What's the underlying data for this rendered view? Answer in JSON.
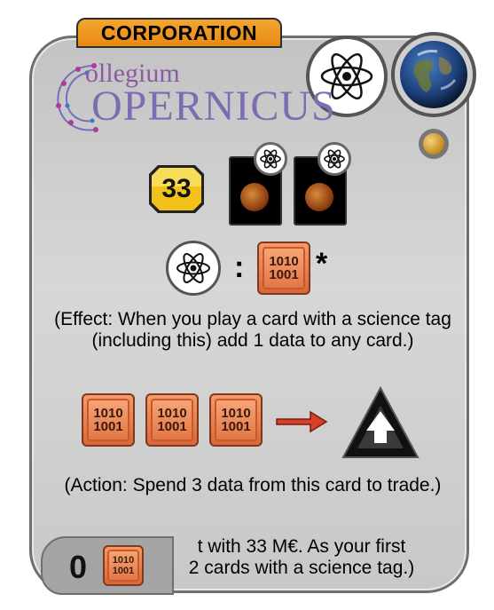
{
  "card_type": "CORPORATION",
  "logo": {
    "line1": "ollegium",
    "line2": "OPERNICUS"
  },
  "tags": [
    "science-icon",
    "earth-icon"
  ],
  "cost": "33",
  "requirement_cards": [
    "card-science",
    "card-science"
  ],
  "effect_separator": ":",
  "effect_marker": "*",
  "effect_text": "(Effect: When you play a card with a science tag (including this) add 1 data to any card.)",
  "data_tile": {
    "line1": "1010",
    "line2": "1001"
  },
  "action_text": "(Action: Spend 3 data from this card to trade.)",
  "start_text_line1": "t with 33 M€. As your first",
  "start_text_line2": "2 cards with a science tag.)",
  "resource_count": "0",
  "colors": {
    "banner": "#e88a12",
    "data": "#e27442",
    "card_bg": "#cfcfcf"
  }
}
